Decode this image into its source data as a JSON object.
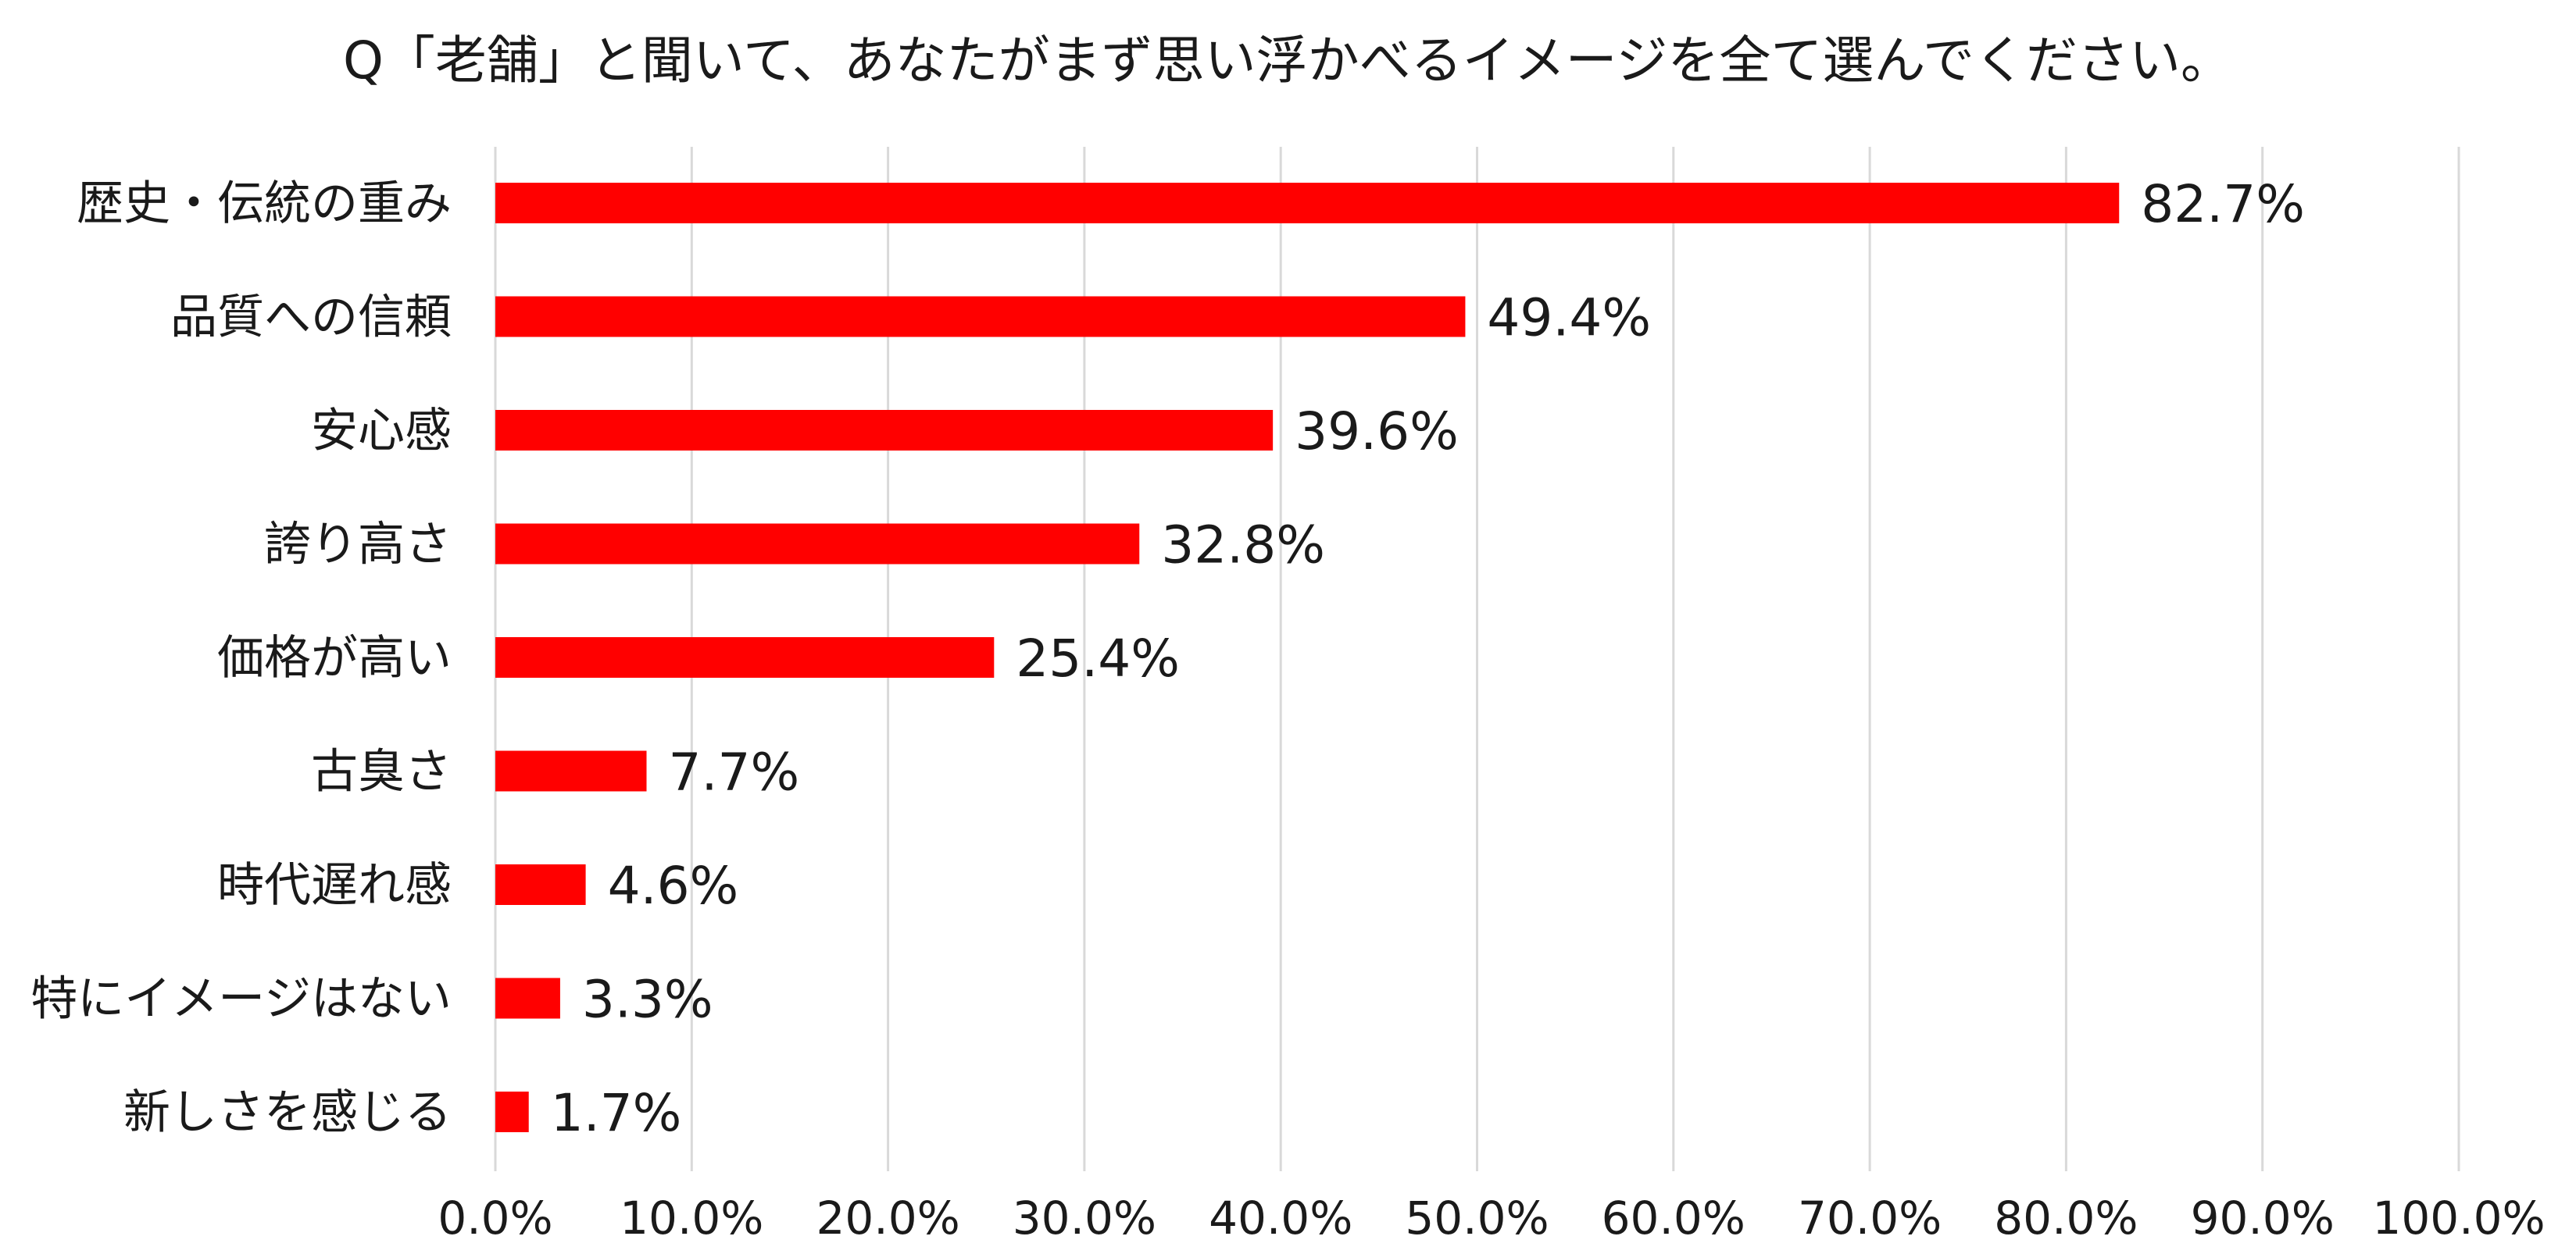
{
  "chart_data": {
    "type": "bar",
    "orientation": "horizontal",
    "title": "Q「老舗」と聞いて、あなたがまず思い浮かべるイメージを全て選んでください。",
    "xlabel": "",
    "ylabel": "",
    "categories": [
      "歴史・伝統の重み",
      "品質への信頼",
      "安心感",
      "誇り高さ",
      "価格が高い",
      "古臭さ",
      "時代遅れ感",
      "特にイメージはない",
      "新しさを感じる"
    ],
    "values": [
      82.7,
      49.4,
      39.6,
      32.8,
      25.4,
      7.7,
      4.6,
      3.3,
      1.7
    ],
    "value_labels": [
      "82.7%",
      "49.4%",
      "39.6%",
      "32.8%",
      "25.4%",
      "7.7%",
      "4.6%",
      "3.3%",
      "1.7%"
    ],
    "xlim": [
      0,
      100
    ],
    "xticks": [
      0,
      10,
      20,
      30,
      40,
      50,
      60,
      70,
      80,
      90,
      100
    ],
    "xtick_labels": [
      "0.0%",
      "10.0%",
      "20.0%",
      "30.0%",
      "40.0%",
      "50.0%",
      "60.0%",
      "70.0%",
      "80.0%",
      "90.0%",
      "100.0%"
    ],
    "grid": "vertical",
    "legend": "none",
    "bar_color": "#ff0000",
    "grid_color": "#d9d9d9"
  }
}
